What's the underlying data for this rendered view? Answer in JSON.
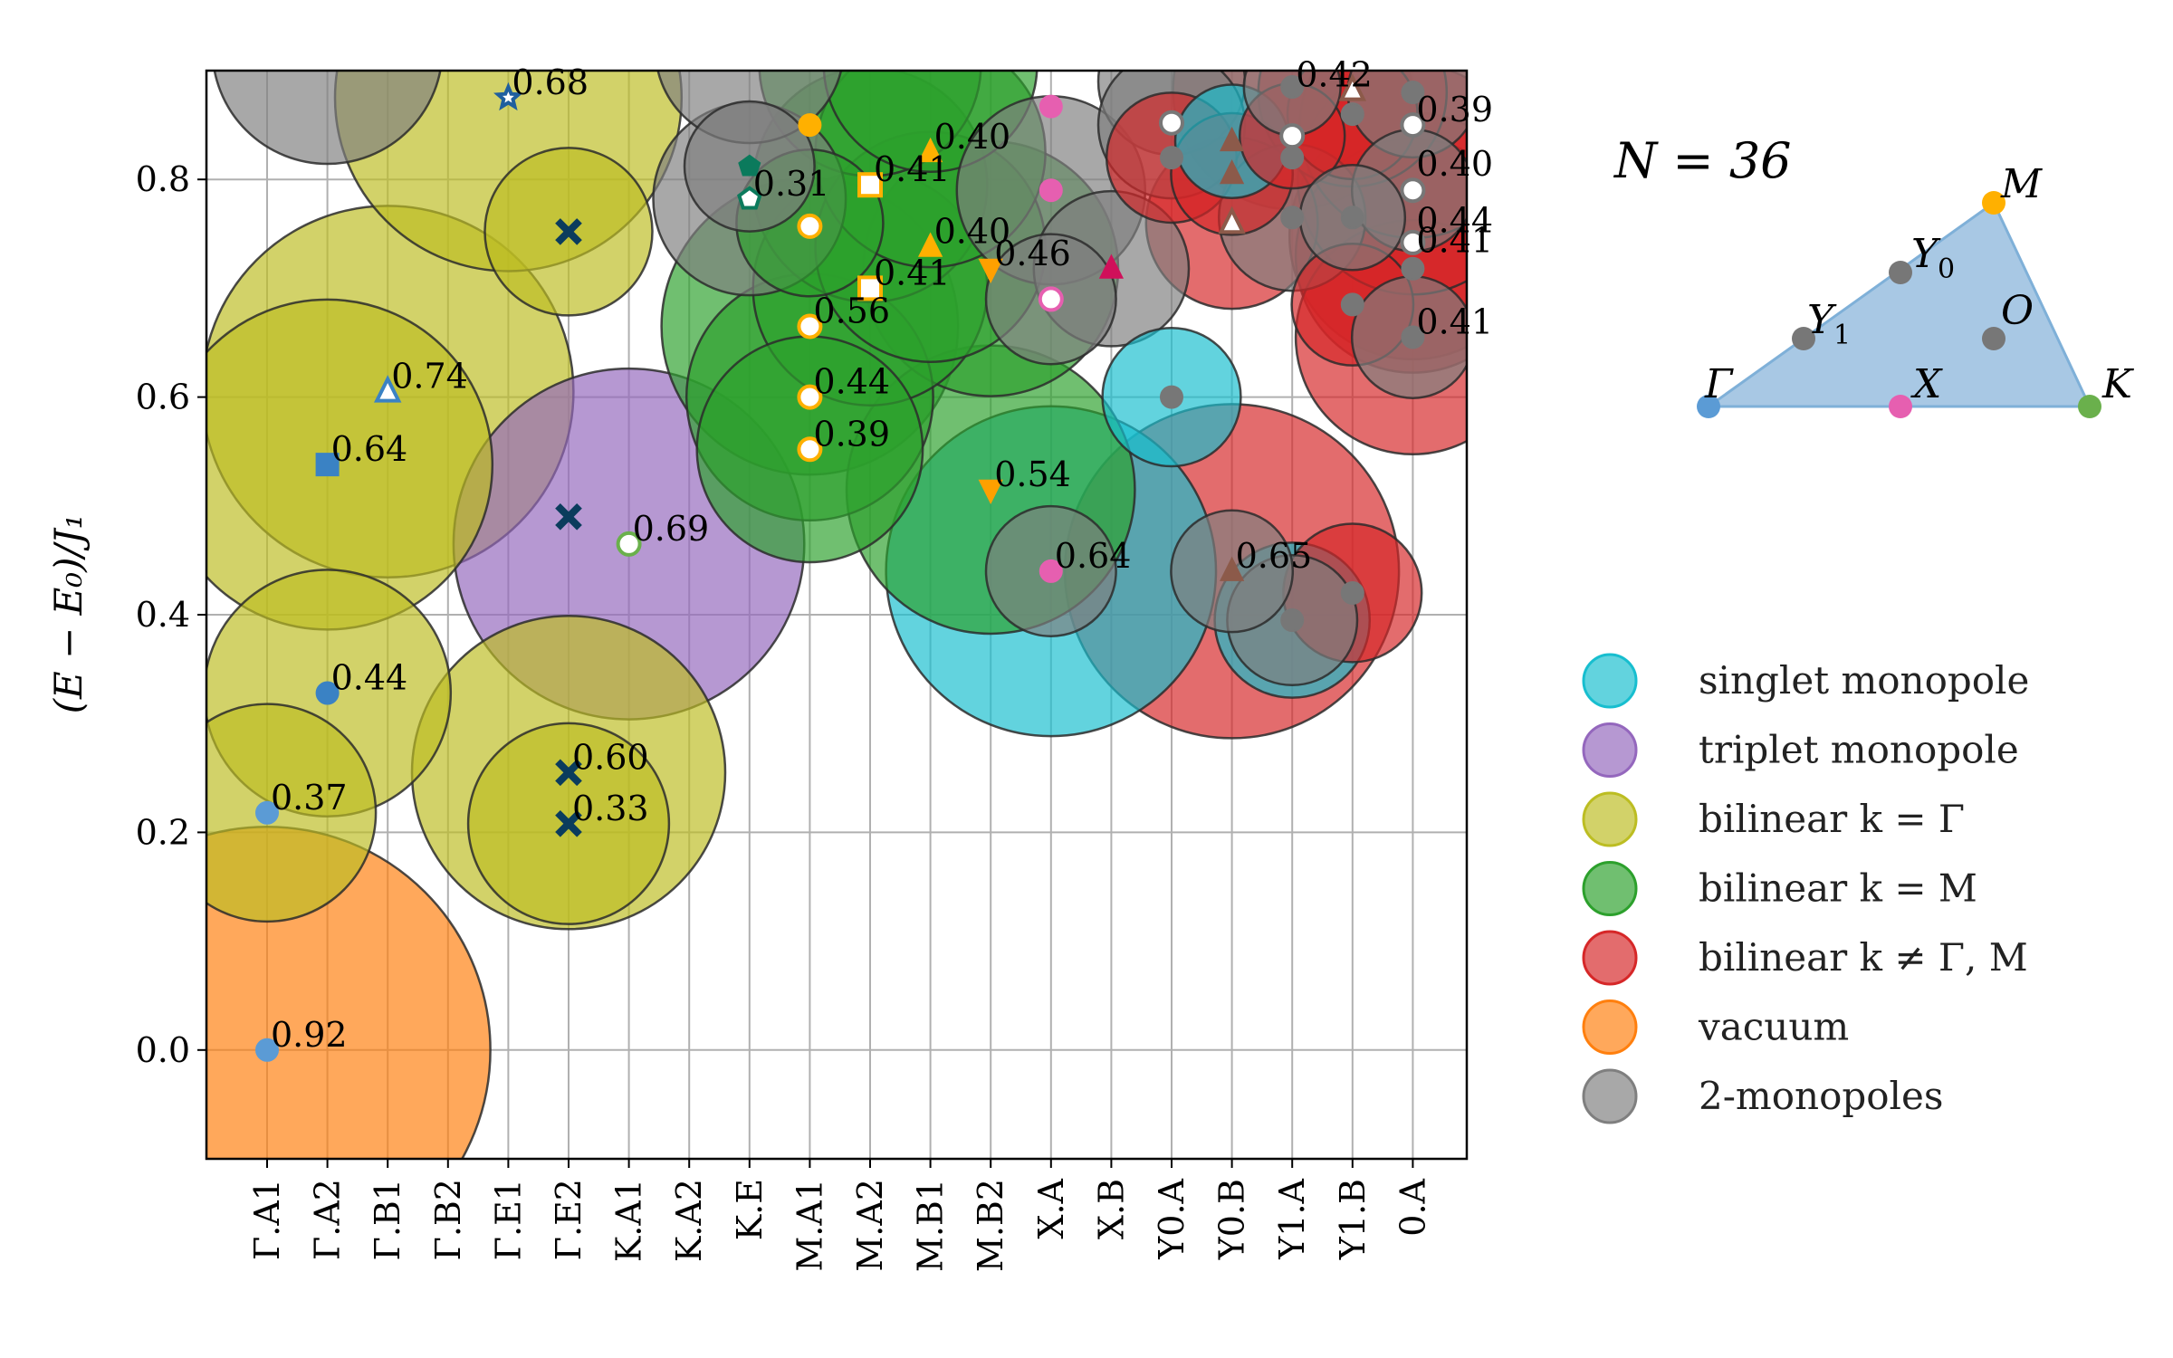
{
  "chart_data": {
    "type": "scatter",
    "title": "",
    "xlabel": "",
    "ylabel": "(E − E₀)/J₁",
    "ylim": [
      -0.1,
      0.9
    ],
    "yticks": [
      "0.0",
      "0.2",
      "0.4",
      "0.6",
      "0.8"
    ],
    "grid": true,
    "n_label": "N = 36",
    "categories": [
      "Γ.A1",
      "Γ.A2",
      "Γ.B1",
      "Γ.B2",
      "Γ.E1",
      "Γ.E2",
      "K.A1",
      "K.A2",
      "K.E",
      "M.A1",
      "M.A2",
      "M.B1",
      "M.B2",
      "X.A",
      "X.B",
      "Y0.A",
      "Y0.B",
      "Y1.A",
      "Y1.B",
      "0.A"
    ],
    "legend": [
      {
        "name": "singlet monopole",
        "color": "#17becf"
      },
      {
        "name": "triplet monopole",
        "color": "#9467bd"
      },
      {
        "name": "bilinear k = Γ",
        "color": "#bcbd22"
      },
      {
        "name": "bilinear k = M",
        "color": "#2ca02c"
      },
      {
        "name": "bilinear k ≠ Γ, M",
        "color": "#d62728"
      },
      {
        "name": "vacuum",
        "color": "#ff7f0e"
      },
      {
        "name": "2-monopoles",
        "color": "#7f7f7f"
      }
    ],
    "bubbles": [
      {
        "cat": 0,
        "y": 0.0,
        "weight": 0.92,
        "kind": "vacuum",
        "label": "0.92"
      },
      {
        "cat": 0,
        "y": 0.218,
        "weight": 0.37,
        "kind": "bilinear k = Γ",
        "label": "0.37"
      },
      {
        "cat": 1,
        "y": 0.328,
        "weight": 0.44,
        "kind": "bilinear k = Γ",
        "label": "0.44"
      },
      {
        "cat": 1,
        "y": 0.538,
        "weight": 0.64,
        "kind": "bilinear k = Γ",
        "label": "0.64"
      },
      {
        "cat": 2,
        "y": 0.605,
        "weight": 0.74,
        "kind": "bilinear k = Γ",
        "label": "0.74"
      },
      {
        "cat": 4,
        "y": 0.875,
        "weight": 0.68,
        "kind": "bilinear k = Γ",
        "label": "0.68"
      },
      {
        "cat": 5,
        "y": 0.752,
        "weight": 0.25,
        "kind": "bilinear k = Γ",
        "label": ""
      },
      {
        "cat": 5,
        "y": 0.255,
        "weight": 0.6,
        "kind": "bilinear k = Γ",
        "label": "0.60"
      },
      {
        "cat": 5,
        "y": 0.208,
        "weight": 0.33,
        "kind": "bilinear k = Γ",
        "label": "0.33"
      },
      {
        "cat": 6,
        "y": 0.465,
        "weight": 0.69,
        "kind": "triplet monopole",
        "label": "0.69"
      },
      {
        "cat": 9,
        "y": 0.552,
        "weight": 0.39,
        "kind": "bilinear k = M",
        "label": "0.39"
      },
      {
        "cat": 9,
        "y": 0.6,
        "weight": 0.44,
        "kind": "bilinear k = M",
        "label": "0.44"
      },
      {
        "cat": 9,
        "y": 0.665,
        "weight": 0.56,
        "kind": "bilinear k = M",
        "label": "0.56"
      },
      {
        "cat": 10,
        "y": 0.7,
        "weight": 0.41,
        "kind": "bilinear k = M",
        "label": "0.41"
      },
      {
        "cat": 10,
        "y": 0.795,
        "weight": 0.41,
        "kind": "bilinear k = M",
        "label": "0.41"
      },
      {
        "cat": 11,
        "y": 0.738,
        "weight": 0.4,
        "kind": "bilinear k = M",
        "label": "0.40"
      },
      {
        "cat": 11,
        "y": 0.825,
        "weight": 0.4,
        "kind": "bilinear k = M",
        "label": "0.40"
      },
      {
        "cat": 12,
        "y": 0.718,
        "weight": 0.46,
        "kind": "bilinear k = M",
        "label": "0.46"
      },
      {
        "cat": 12,
        "y": 0.515,
        "weight": 0.54,
        "kind": "bilinear k = M",
        "label": "0.54"
      },
      {
        "cat": 8,
        "y": 0.782,
        "weight": 0.31,
        "kind": "2-monopoles",
        "label": "0.31"
      },
      {
        "cat": 13,
        "y": 0.44,
        "weight": 0.64,
        "kind": "singlet monopole",
        "label": "0.64"
      },
      {
        "cat": 13,
        "y": 0.79,
        "weight": 0.3,
        "kind": "2-monopoles",
        "label": ""
      },
      {
        "cat": 16,
        "y": 0.44,
        "weight": 0.65,
        "kind": "bilinear k ≠ Γ, M",
        "label": "0.65"
      },
      {
        "cat": 17,
        "y": 0.882,
        "weight": 0.42,
        "kind": "bilinear k ≠ Γ, M",
        "label": "0.42"
      },
      {
        "cat": 19,
        "y": 0.85,
        "weight": 0.39,
        "kind": "bilinear k ≠ Γ, M",
        "label": "0.39"
      },
      {
        "cat": 19,
        "y": 0.8,
        "weight": 0.4,
        "kind": "bilinear k ≠ Γ, M",
        "label": "0.40"
      },
      {
        "cat": 19,
        "y": 0.748,
        "weight": 0.44,
        "kind": "bilinear k ≠ Γ, M",
        "label": "0.44"
      },
      {
        "cat": 19,
        "y": 0.73,
        "weight": 0.41,
        "kind": "bilinear k ≠ Γ, M",
        "label": "0.41"
      },
      {
        "cat": 19,
        "y": 0.655,
        "weight": 0.41,
        "kind": "bilinear k ≠ Γ, M",
        "label": "0.41"
      }
    ],
    "extra_bubbles": [
      {
        "cat": 1,
        "y": 0.92,
        "weight": 0.4,
        "kind": "2-monopoles"
      },
      {
        "cat": 8,
        "y": 0.92,
        "weight": 0.3,
        "kind": "2-monopoles"
      },
      {
        "cat": 8,
        "y": 0.812,
        "weight": 0.16,
        "kind": "2-monopoles"
      },
      {
        "cat": 9,
        "y": 0.76,
        "weight": 0.2,
        "kind": "bilinear k = M"
      },
      {
        "cat": 10,
        "y": 0.905,
        "weight": 0.38,
        "kind": "bilinear k = M"
      },
      {
        "cat": 11,
        "y": 0.905,
        "weight": 0.36,
        "kind": "bilinear k = M"
      },
      {
        "cat": 13,
        "y": 0.69,
        "weight": 0.16,
        "kind": "2-monopoles"
      },
      {
        "cat": 13,
        "y": 0.44,
        "weight": 0.16,
        "kind": "2-monopoles"
      },
      {
        "cat": 14,
        "y": 0.718,
        "weight": 0.22,
        "kind": "2-monopoles"
      },
      {
        "cat": 15,
        "y": 0.89,
        "weight": 0.2,
        "kind": "2-monopoles"
      },
      {
        "cat": 15,
        "y": 0.85,
        "weight": 0.2,
        "kind": "2-monopoles"
      },
      {
        "cat": 15,
        "y": 0.82,
        "weight": 0.16,
        "kind": "bilinear k ≠ Γ, M"
      },
      {
        "cat": 15,
        "y": 0.6,
        "weight": 0.18,
        "kind": "singlet monopole"
      },
      {
        "cat": 16,
        "y": 0.835,
        "weight": 0.12,
        "kind": "singlet monopole"
      },
      {
        "cat": 16,
        "y": 0.805,
        "weight": 0.14,
        "kind": "bilinear k ≠ Γ, M"
      },
      {
        "cat": 16,
        "y": 0.76,
        "weight": 0.26,
        "kind": "bilinear k ≠ Γ, M"
      },
      {
        "cat": 16,
        "y": 0.44,
        "weight": 0.14,
        "kind": "2-monopoles"
      },
      {
        "cat": 17,
        "y": 0.84,
        "weight": 0.1,
        "kind": "bilinear k ≠ Γ, M"
      },
      {
        "cat": 17,
        "y": 0.765,
        "weight": 0.2,
        "kind": "2-monopoles"
      },
      {
        "cat": 17,
        "y": 0.885,
        "weight": 0.08,
        "kind": "2-monopoles"
      },
      {
        "cat": 17,
        "y": 0.395,
        "weight": 0.22,
        "kind": "singlet monopole"
      },
      {
        "cat": 17,
        "y": 0.395,
        "weight": 0.16,
        "kind": "2-monopoles"
      },
      {
        "cat": 18,
        "y": 0.42,
        "weight": 0.18,
        "kind": "bilinear k ≠ Γ, M"
      },
      {
        "cat": 18,
        "y": 0.685,
        "weight": 0.14,
        "kind": "bilinear k ≠ Γ, M"
      },
      {
        "cat": 18,
        "y": 0.765,
        "weight": 0.1,
        "kind": "2-monopoles"
      },
      {
        "cat": 18,
        "y": 0.86,
        "weight": 0.16,
        "kind": "bilinear k ≠ Γ, M"
      },
      {
        "cat": 18,
        "y": 0.88,
        "weight": 0.3,
        "kind": "bilinear k ≠ Γ, M"
      },
      {
        "cat": 19,
        "y": 0.88,
        "weight": 0.16,
        "kind": "2-monopoles"
      },
      {
        "cat": 19,
        "y": 0.79,
        "weight": 0.14,
        "kind": "2-monopoles"
      },
      {
        "cat": 19,
        "y": 0.655,
        "weight": 0.14,
        "kind": "2-monopoles"
      }
    ],
    "markers": [
      {
        "cat": 0,
        "y": 0.0,
        "shape": "circle",
        "color": "#5b9bd5",
        "filled": true
      },
      {
        "cat": 0,
        "y": 0.218,
        "shape": "circle",
        "color": "#5b9bd5",
        "filled": true
      },
      {
        "cat": 1,
        "y": 0.328,
        "shape": "circle",
        "color": "#3a82c4",
        "filled": true
      },
      {
        "cat": 1,
        "y": 0.538,
        "shape": "square",
        "color": "#3a82c4",
        "filled": true
      },
      {
        "cat": 2,
        "y": 0.605,
        "shape": "triangle",
        "color": "#3a82c4",
        "filled": false
      },
      {
        "cat": 4,
        "y": 0.875,
        "shape": "star",
        "color": "#1f5f9e",
        "filled": false
      },
      {
        "cat": 5,
        "y": 0.752,
        "shape": "x",
        "color": "#0b3c5d",
        "filled": true
      },
      {
        "cat": 5,
        "y": 0.49,
        "shape": "x",
        "color": "#0b3c5d",
        "filled": true
      },
      {
        "cat": 5,
        "y": 0.255,
        "shape": "x",
        "color": "#0b3c5d",
        "filled": true
      },
      {
        "cat": 5,
        "y": 0.208,
        "shape": "x",
        "color": "#0b3c5d",
        "filled": true
      },
      {
        "cat": 6,
        "y": 0.465,
        "shape": "circle",
        "color": "#6ab04c",
        "filled": false
      },
      {
        "cat": 8,
        "y": 0.782,
        "shape": "pentagon",
        "color": "#0b7a5c",
        "filled": false
      },
      {
        "cat": 8,
        "y": 0.812,
        "shape": "pentagon",
        "color": "#0b7a5c",
        "filled": true
      },
      {
        "cat": 9,
        "y": 0.85,
        "shape": "circle",
        "color": "#ffb000",
        "filled": true
      },
      {
        "cat": 9,
        "y": 0.757,
        "shape": "circle",
        "color": "#ffb000",
        "filled": false
      },
      {
        "cat": 9,
        "y": 0.665,
        "shape": "circle",
        "color": "#ffb000",
        "filled": false
      },
      {
        "cat": 9,
        "y": 0.6,
        "shape": "circle",
        "color": "#ffb000",
        "filled": false
      },
      {
        "cat": 9,
        "y": 0.552,
        "shape": "circle",
        "color": "#ffb000",
        "filled": false
      },
      {
        "cat": 10,
        "y": 0.795,
        "shape": "square",
        "color": "#ffb000",
        "filled": false
      },
      {
        "cat": 10,
        "y": 0.7,
        "shape": "square",
        "color": "#ffb000",
        "filled": false
      },
      {
        "cat": 11,
        "y": 0.825,
        "shape": "triangle",
        "color": "#ffb000",
        "filled": true
      },
      {
        "cat": 11,
        "y": 0.738,
        "shape": "triangle",
        "color": "#ffb000",
        "filled": true
      },
      {
        "cat": 12,
        "y": 0.718,
        "shape": "triangle-down",
        "color": "#ffa000",
        "filled": true
      },
      {
        "cat": 12,
        "y": 0.515,
        "shape": "triangle-down",
        "color": "#ffa000",
        "filled": true
      },
      {
        "cat": 13,
        "y": 0.867,
        "shape": "circle",
        "color": "#e65fb0",
        "filled": true
      },
      {
        "cat": 13,
        "y": 0.79,
        "shape": "circle",
        "color": "#e65fb0",
        "filled": true
      },
      {
        "cat": 13,
        "y": 0.69,
        "shape": "circle",
        "color": "#e65fb0",
        "filled": false
      },
      {
        "cat": 13,
        "y": 0.44,
        "shape": "circle",
        "color": "#e65fb0",
        "filled": true
      },
      {
        "cat": 14,
        "y": 0.718,
        "shape": "triangle",
        "color": "#d0105a",
        "filled": true
      },
      {
        "cat": 15,
        "y": 0.852,
        "shape": "circle",
        "color": "#777777",
        "filled": false
      },
      {
        "cat": 15,
        "y": 0.82,
        "shape": "circle",
        "color": "#777777",
        "filled": true
      },
      {
        "cat": 15,
        "y": 0.6,
        "shape": "circle",
        "color": "#777777",
        "filled": true
      },
      {
        "cat": 16,
        "y": 0.835,
        "shape": "triangle",
        "color": "#8c5a4a",
        "filled": true
      },
      {
        "cat": 16,
        "y": 0.805,
        "shape": "triangle",
        "color": "#8c5a4a",
        "filled": true
      },
      {
        "cat": 16,
        "y": 0.76,
        "shape": "triangle",
        "color": "#8c5a4a",
        "filled": false
      },
      {
        "cat": 16,
        "y": 0.44,
        "shape": "triangle",
        "color": "#8c5a4a",
        "filled": true
      },
      {
        "cat": 17,
        "y": 0.885,
        "shape": "circle",
        "color": "#777777",
        "filled": true
      },
      {
        "cat": 17,
        "y": 0.84,
        "shape": "circle",
        "color": "#777777",
        "filled": false
      },
      {
        "cat": 17,
        "y": 0.82,
        "shape": "circle",
        "color": "#777777",
        "filled": true
      },
      {
        "cat": 17,
        "y": 0.765,
        "shape": "circle",
        "color": "#777777",
        "filled": true
      },
      {
        "cat": 17,
        "y": 0.395,
        "shape": "circle",
        "color": "#777777",
        "filled": true
      },
      {
        "cat": 18,
        "y": 0.882,
        "shape": "triangle",
        "color": "#8c5a4a",
        "filled": false
      },
      {
        "cat": 18,
        "y": 0.86,
        "shape": "circle",
        "color": "#777777",
        "filled": true
      },
      {
        "cat": 18,
        "y": 0.765,
        "shape": "circle",
        "color": "#777777",
        "filled": true
      },
      {
        "cat": 18,
        "y": 0.685,
        "shape": "circle",
        "color": "#777777",
        "filled": true
      },
      {
        "cat": 18,
        "y": 0.42,
        "shape": "circle",
        "color": "#777777",
        "filled": true
      },
      {
        "cat": 19,
        "y": 0.88,
        "shape": "circle",
        "color": "#777777",
        "filled": true
      },
      {
        "cat": 19,
        "y": 0.85,
        "shape": "circle",
        "color": "#777777",
        "filled": false
      },
      {
        "cat": 19,
        "y": 0.79,
        "shape": "circle",
        "color": "#777777",
        "filled": false
      },
      {
        "cat": 19,
        "y": 0.742,
        "shape": "circle",
        "color": "#777777",
        "filled": false
      },
      {
        "cat": 19,
        "y": 0.718,
        "shape": "circle",
        "color": "#777777",
        "filled": true
      },
      {
        "cat": 19,
        "y": 0.655,
        "shape": "circle",
        "color": "#777777",
        "filled": true
      }
    ],
    "inset": {
      "points": [
        {
          "label": "Γ",
          "color": "#5b9bd5"
        },
        {
          "label": "X",
          "color": "#e65fb0"
        },
        {
          "label": "K",
          "color": "#6ab04c"
        },
        {
          "label": "M",
          "color": "#ffb000"
        },
        {
          "label": "Y",
          "sub": "0",
          "color": "#777777"
        },
        {
          "label": "Y",
          "sub": "1",
          "color": "#777777"
        },
        {
          "label": "O",
          "color": "#777777"
        }
      ],
      "fill": "#a8c8e4"
    }
  }
}
